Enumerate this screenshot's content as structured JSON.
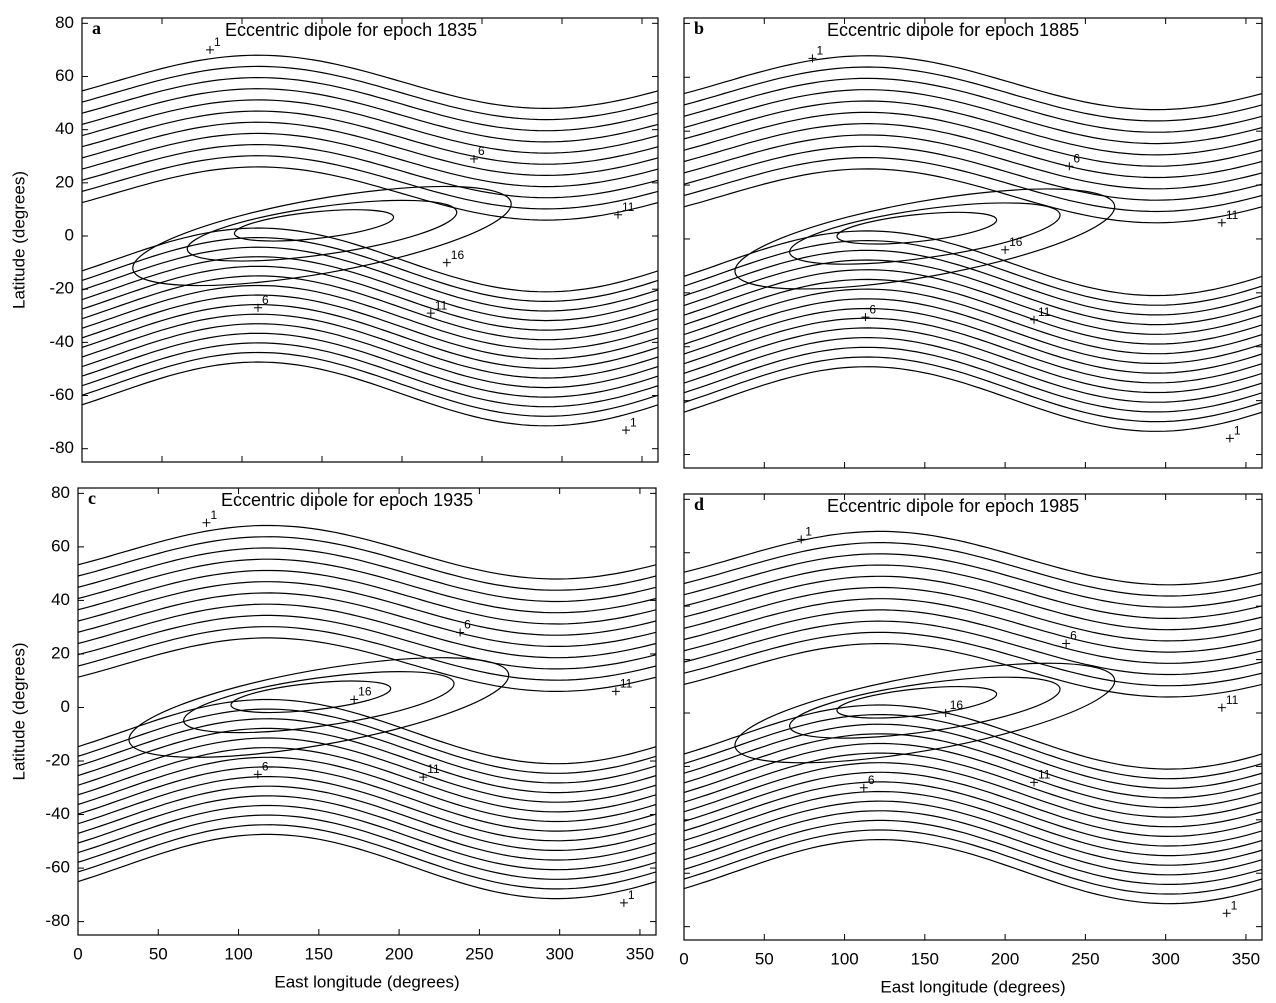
{
  "chart_data": [
    {
      "type": "contour",
      "panel": "a",
      "title": "Eccentric dipole for epoch 1835",
      "ylabel": "Latitude (degrees)",
      "xlim": [
        0,
        360
      ],
      "ylim": [
        -85,
        82
      ],
      "xticks": [
        0,
        50,
        100,
        150,
        200,
        250,
        300,
        350
      ],
      "yticks": [
        -80,
        -60,
        -40,
        -20,
        0,
        20,
        40,
        60,
        80
      ],
      "contour_labels": [
        {
          "level": 1,
          "x": 80,
          "y": 70
        },
        {
          "level": 6,
          "x": 245,
          "y": 29
        },
        {
          "level": 11,
          "x": 335,
          "y": 8
        },
        {
          "level": 16,
          "x": 228,
          "y": -10
        },
        {
          "level": 6,
          "x": 110,
          "y": -27
        },
        {
          "level": 11,
          "x": 218,
          "y": -29
        },
        {
          "level": 1,
          "x": 340,
          "y": -73
        }
      ]
    },
    {
      "type": "contour",
      "panel": "b",
      "title": "Eccentric dipole for epoch 1885",
      "xlim": [
        0,
        360
      ],
      "ylim": [
        -85,
        82
      ],
      "xticks": [
        0,
        50,
        100,
        150,
        200,
        250,
        300,
        350
      ],
      "yticks": [
        -80,
        -60,
        -40,
        -20,
        0,
        20,
        40,
        60,
        80
      ],
      "contour_labels": [
        {
          "level": 1,
          "x": 80,
          "y": 67
        },
        {
          "level": 6,
          "x": 240,
          "y": 27
        },
        {
          "level": 11,
          "x": 335,
          "y": 6
        },
        {
          "level": 16,
          "x": 200,
          "y": -4
        },
        {
          "level": 6,
          "x": 113,
          "y": -29
        },
        {
          "level": 11,
          "x": 218,
          "y": -30
        },
        {
          "level": 1,
          "x": 340,
          "y": -74
        }
      ]
    },
    {
      "type": "contour",
      "panel": "c",
      "title": "Eccentric dipole for epoch 1935",
      "xlabel": "East longitude (degrees)",
      "ylabel": "Latitude (degrees)",
      "xlim": [
        0,
        360
      ],
      "ylim": [
        -85,
        82
      ],
      "xticks": [
        0,
        50,
        100,
        150,
        200,
        250,
        300,
        350
      ],
      "yticks": [
        -80,
        -60,
        -40,
        -20,
        0,
        20,
        40,
        60,
        80
      ],
      "contour_labels": [
        {
          "level": 1,
          "x": 80,
          "y": 69
        },
        {
          "level": 6,
          "x": 238,
          "y": 28
        },
        {
          "level": 11,
          "x": 335,
          "y": 6
        },
        {
          "level": 16,
          "x": 172,
          "y": 3
        },
        {
          "level": 6,
          "x": 112,
          "y": -25
        },
        {
          "level": 11,
          "x": 215,
          "y": -26
        },
        {
          "level": 1,
          "x": 340,
          "y": -73
        }
      ]
    },
    {
      "type": "contour",
      "panel": "d",
      "title": "Eccentric dipole for epoch 1985",
      "xlabel": "East longitude (degrees)",
      "xlim": [
        0,
        360
      ],
      "ylim": [
        -85,
        82
      ],
      "xticks": [
        0,
        50,
        100,
        150,
        200,
        250,
        300,
        350
      ],
      "yticks": [
        -80,
        -60,
        -40,
        -20,
        0,
        20,
        40,
        60,
        80
      ],
      "contour_labels": [
        {
          "level": 1,
          "x": 73,
          "y": 65
        },
        {
          "level": 6,
          "x": 238,
          "y": 26
        },
        {
          "level": 11,
          "x": 335,
          "y": 2
        },
        {
          "level": 16,
          "x": 163,
          "y": 0
        },
        {
          "level": 6,
          "x": 112,
          "y": -28
        },
        {
          "level": 11,
          "x": 218,
          "y": -26
        },
        {
          "level": 1,
          "x": 338,
          "y": -75
        }
      ]
    }
  ]
}
